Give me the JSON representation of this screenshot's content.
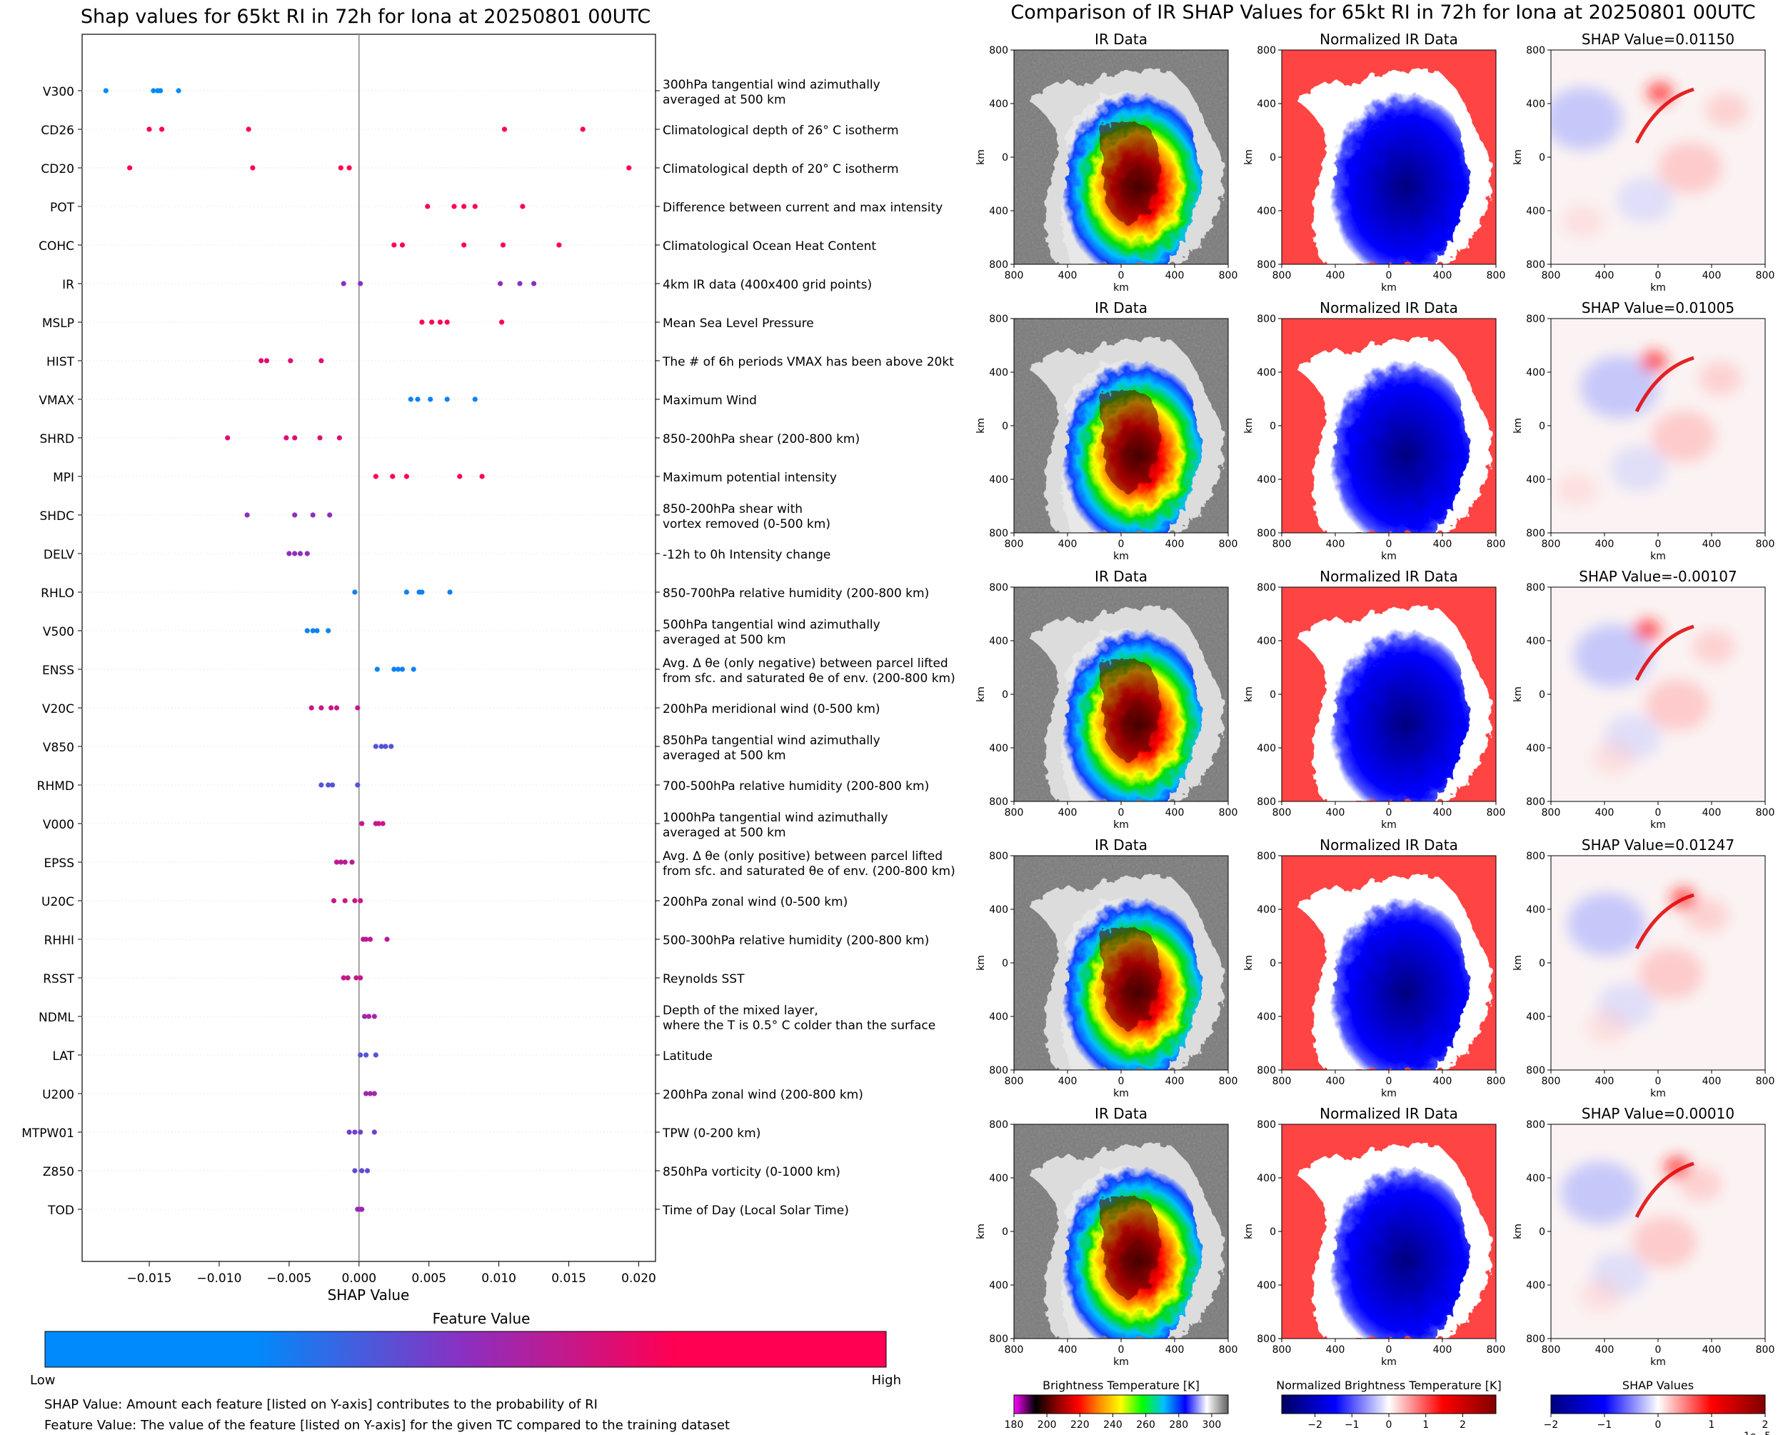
{
  "colors": {
    "low": "#008afb",
    "mid": "#8c2fc0",
    "high": "#ff0052",
    "zero_line": "#888888",
    "ir_ramp": [
      "#ff00ff",
      "#000000",
      "#8b0000",
      "#ff0000",
      "#ff8c00",
      "#ffff00",
      "#00ff00",
      "#00c0ff",
      "#0000ff",
      "#ffffff",
      "#606060"
    ],
    "norm_ramp": [
      "#000060",
      "#0000ff",
      "#ffffff",
      "#ff0000",
      "#800000"
    ],
    "shap_ramp": [
      "#000080",
      "#0000ff",
      "#ffffff",
      "#ff0000",
      "#800000"
    ]
  },
  "left_panel": {
    "title": "Shap values for 65kt RI in 72h for Iona at 20250801 00UTC",
    "xlabel": "SHAP Value",
    "colorbar_title": "Feature Value",
    "colorbar_low": "Low",
    "colorbar_high": "High",
    "footnote1": "SHAP Value: Amount each feature [listed on Y-axis] contributes to the probability of RI",
    "footnote2": "Feature Value: The value of the feature [listed on Y-axis] for the given TC compared to the training dataset"
  },
  "chart_data": [
    {
      "type": "scatter",
      "title": "Shap values for 65kt RI in 72h for Iona at 20250801 00UTC",
      "xlabel": "SHAP Value",
      "xlim": [
        -0.0198,
        0.0212
      ],
      "xticks": [
        -0.015,
        -0.01,
        -0.005,
        0.0,
        0.005,
        0.01,
        0.015,
        0.02
      ],
      "xtick_labels": [
        "−0.015",
        "−0.010",
        "−0.005",
        "0.000",
        "0.005",
        "0.010",
        "0.015",
        "0.020"
      ],
      "features": [
        {
          "name": "V300",
          "desc": [
            "300hPa tangential wind azimuthally",
            "averaged at 500 km"
          ],
          "fv": 0.0,
          "values": [
            -0.0181,
            -0.0147,
            -0.0144,
            -0.0142,
            -0.0129
          ]
        },
        {
          "name": "CD26",
          "desc": [
            "Climatological depth of 26° C isotherm"
          ],
          "fv": 1.0,
          "values": [
            -0.015,
            -0.0141,
            -0.0079,
            0.0104,
            0.016
          ]
        },
        {
          "name": "CD20",
          "desc": [
            "Climatological depth of 20° C isotherm"
          ],
          "fv": 1.0,
          "values": [
            -0.0164,
            -0.0076,
            -0.0013,
            -0.0007,
            0.0193
          ]
        },
        {
          "name": "POT",
          "desc": [
            "Difference between current and max intensity"
          ],
          "fv": 1.0,
          "values": [
            0.0049,
            0.0068,
            0.0075,
            0.0083,
            0.0117
          ]
        },
        {
          "name": "COHC",
          "desc": [
            "Climatological Ocean Heat Content"
          ],
          "fv": 1.0,
          "values": [
            0.0025,
            0.0031,
            0.0075,
            0.0103,
            0.0143
          ]
        },
        {
          "name": "IR",
          "desc": [
            "4km IR data (400x400 grid points)"
          ],
          "fv": 0.5,
          "values": [
            -0.0011,
            0.0001,
            0.0101,
            0.0115,
            0.0125
          ]
        },
        {
          "name": "MSLP",
          "desc": [
            "Mean Sea Level Pressure"
          ],
          "fv": 1.0,
          "values": [
            0.0045,
            0.0052,
            0.0058,
            0.0063,
            0.0102
          ]
        },
        {
          "name": "HIST",
          "desc": [
            "The # of 6h periods VMAX has been above 20kt"
          ],
          "fv": 0.85,
          "values": [
            -0.007,
            -0.0066,
            -0.0049,
            -0.0027
          ]
        },
        {
          "name": "VMAX",
          "desc": [
            "Maximum Wind"
          ],
          "fv": 0.05,
          "values": [
            0.0037,
            0.0042,
            0.0051,
            0.0063,
            0.0083
          ]
        },
        {
          "name": "SHRD",
          "desc": [
            "850-200hPa shear (200-800 km)"
          ],
          "fv": 0.85,
          "values": [
            -0.0094,
            -0.0052,
            -0.0046,
            -0.0028,
            -0.0014
          ]
        },
        {
          "name": "MPI",
          "desc": [
            "Maximum potential intensity"
          ],
          "fv": 1.0,
          "values": [
            0.0012,
            0.0024,
            0.0034,
            0.0072,
            0.0088
          ]
        },
        {
          "name": "SHDC",
          "desc": [
            "850-200hPa shear with",
            "vortex removed (0-500 km)"
          ],
          "fv": 0.5,
          "values": [
            -0.008,
            -0.0046,
            -0.0033,
            -0.0021
          ]
        },
        {
          "name": "DELV",
          "desc": [
            "-12h to 0h Intensity change"
          ],
          "fv": 0.5,
          "values": [
            -0.005,
            -0.0046,
            -0.0042,
            -0.0037
          ]
        },
        {
          "name": "RHLO",
          "desc": [
            "850-700hPa relative humidity (200-800 km)"
          ],
          "fv": 0.05,
          "values": [
            -0.0003,
            0.0034,
            0.0043,
            0.0045,
            0.0065
          ]
        },
        {
          "name": "V500",
          "desc": [
            "500hPa tangential wind azimuthally",
            "averaged at 500 km"
          ],
          "fv": 0.05,
          "values": [
            -0.0037,
            -0.0033,
            -0.003,
            -0.0022
          ]
        },
        {
          "name": "ENSS",
          "desc": [
            "Avg. Δ θe (only negative) between parcel lifted",
            "from sfc. and saturated θe of env. (200-800 km)"
          ],
          "fv": 0.05,
          "values": [
            0.0013,
            0.0025,
            0.0028,
            0.0031,
            0.0039
          ]
        },
        {
          "name": "V20C",
          "desc": [
            "200hPa meridional wind (0-500 km)"
          ],
          "fv": 0.75,
          "values": [
            -0.0034,
            -0.0027,
            -0.002,
            -0.0016,
            -0.0001
          ]
        },
        {
          "name": "V850",
          "desc": [
            "850hPa tangential wind azimuthally",
            "averaged at 500 km"
          ],
          "fv": 0.3,
          "values": [
            0.0012,
            0.0016,
            0.0019,
            0.0023
          ]
        },
        {
          "name": "RHMD",
          "desc": [
            "700-500hPa relative humidity (200-800 km)"
          ],
          "fv": 0.3,
          "values": [
            -0.0027,
            -0.0022,
            -0.0019,
            -0.0001
          ]
        },
        {
          "name": "V000",
          "desc": [
            "1000hPa tangential wind azimuthally",
            "averaged at 500 km"
          ],
          "fv": 0.75,
          "values": [
            0.0002,
            0.0012,
            0.0014,
            0.0017
          ]
        },
        {
          "name": "EPSS",
          "desc": [
            "Avg. Δ θe (only positive) between parcel lifted",
            "from sfc. and saturated θe of env. (200-800 km)"
          ],
          "fv": 0.7,
          "values": [
            -0.0016,
            -0.0013,
            -0.001,
            -0.0005
          ]
        },
        {
          "name": "U20C",
          "desc": [
            "200hPa zonal wind (0-500 km)"
          ],
          "fv": 0.75,
          "values": [
            -0.0018,
            -0.001,
            -0.0003,
            0.0001
          ]
        },
        {
          "name": "RHHI",
          "desc": [
            "500-300hPa relative humidity (200-800 km)"
          ],
          "fv": 0.7,
          "values": [
            0.0003,
            0.0005,
            0.0008,
            0.002
          ]
        },
        {
          "name": "RSST",
          "desc": [
            "Reynolds SST"
          ],
          "fv": 0.75,
          "values": [
            -0.0011,
            -0.0008,
            -0.0002,
            0.0001
          ]
        },
        {
          "name": "NDML",
          "desc": [
            "Depth of the mixed layer,",
            "where the T is 0.5° C colder than the surface"
          ],
          "fv": 0.6,
          "values": [
            0.0004,
            0.0007,
            0.0011
          ]
        },
        {
          "name": "LAT",
          "desc": [
            "Latitude"
          ],
          "fv": 0.3,
          "values": [
            0.0001,
            0.0005,
            0.0012
          ]
        },
        {
          "name": "U200",
          "desc": [
            "200hPa zonal wind (200-800 km)"
          ],
          "fv": 0.6,
          "values": [
            0.0005,
            0.0008,
            0.0011
          ]
        },
        {
          "name": "MTPW01",
          "desc": [
            "TPW (0-200 km)"
          ],
          "fv": 0.4,
          "values": [
            -0.0007,
            -0.0003,
            0.0001,
            0.0011
          ]
        },
        {
          "name": "Z850",
          "desc": [
            "850hPa vorticity (0-1000 km)"
          ],
          "fv": 0.35,
          "values": [
            -0.0003,
            0.0002,
            0.0006
          ]
        },
        {
          "name": "TOD",
          "desc": [
            "Time of Day (Local Solar Time)"
          ],
          "fv": 0.55,
          "values": [
            -0.0001,
            0.0001,
            0.0002
          ]
        }
      ]
    },
    {
      "type": "heatmap",
      "title": "Comparison of IR SHAP Values for 65kt RI in 72h for Iona at 20250801 00UTC",
      "column_titles": [
        "IR Data",
        "Normalized IR Data"
      ],
      "shap_titles": [
        "SHAP Value=0.01150",
        "SHAP Value=0.01005",
        "SHAP Value=-0.00107",
        "SHAP Value=0.01247",
        "SHAP Value=0.00010"
      ],
      "axis_label": "km",
      "ytick_labels": [
        "800",
        "400",
        "0",
        "400",
        "800"
      ],
      "xtick_labels": [
        "800",
        "400",
        "0",
        "400",
        "800"
      ],
      "colorbars": [
        {
          "label": "Brightness Temperature [K]",
          "ticks": [
            "180",
            "200",
            "220",
            "240",
            "260",
            "280",
            "300"
          ],
          "range": [
            180,
            310
          ]
        },
        {
          "label": "Normalized Brightness Temperature [K]",
          "ticks": [
            "−2",
            "−1",
            "0",
            "1",
            "2"
          ],
          "range": [
            -2.9,
            2.9
          ]
        },
        {
          "label": "SHAP Values",
          "ticks": [
            "−2",
            "−1",
            "0",
            "1",
            "2"
          ],
          "range": [
            -2,
            2
          ],
          "exponent": "1e−5"
        }
      ]
    }
  ]
}
